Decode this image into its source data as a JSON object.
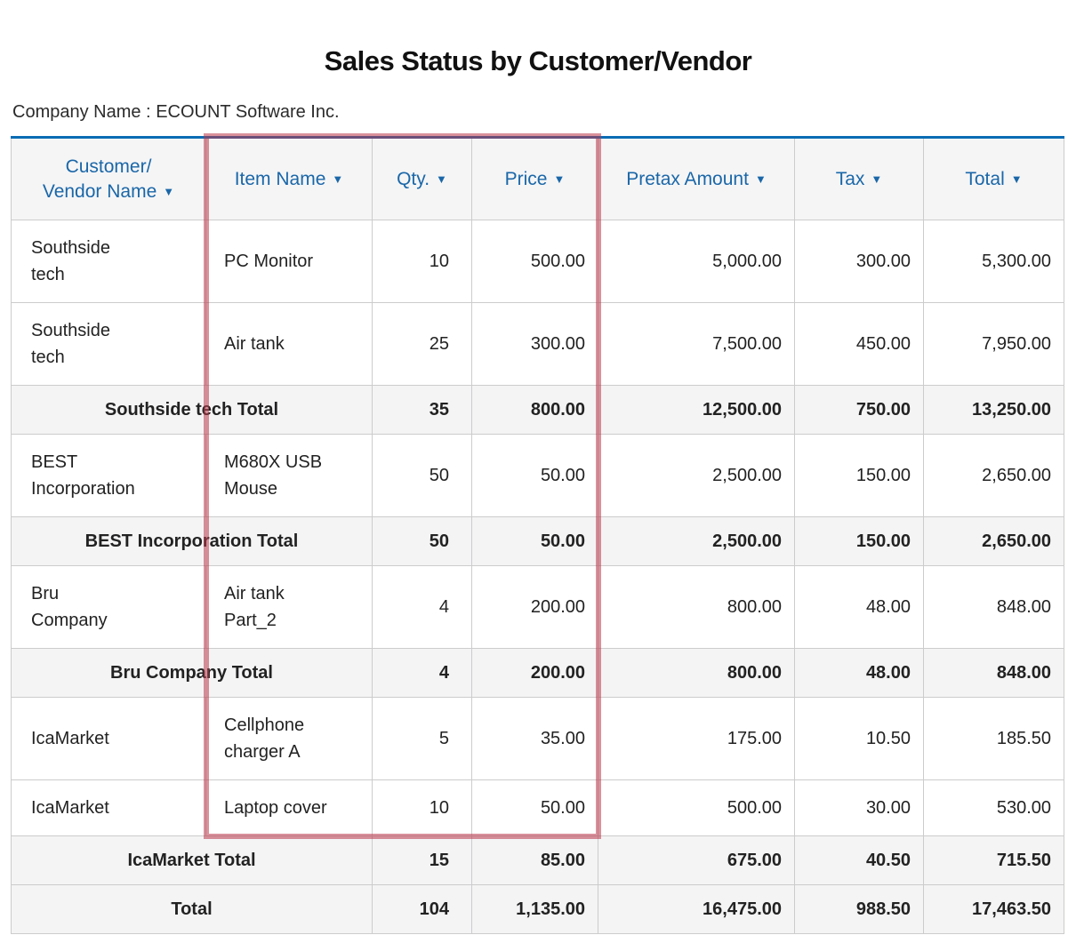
{
  "report": {
    "title": "Sales Status by Customer/Vendor",
    "company_label": "Company Name :",
    "company_name": "ECOUNT Software Inc."
  },
  "colors": {
    "accent_blue": "#0b6cb4",
    "header_text_blue": "#1a67a8",
    "highlight_red": "rgba(185,55,72,0.55)",
    "grid_line": "#cccccc",
    "total_row_bg": "#f4f4f5"
  },
  "icons": {
    "sort_icon": "▼"
  },
  "highlight": {
    "from_column": "item",
    "to_column": "price",
    "covers_rows": "header-through-last-data-row"
  },
  "table": {
    "columns": [
      {
        "id": "customer",
        "lines": [
          "Customer/",
          "Vendor Name"
        ],
        "sortable": true
      },
      {
        "id": "item",
        "lines": [
          "Item Name"
        ],
        "sortable": true
      },
      {
        "id": "qty",
        "lines": [
          "Qty."
        ],
        "sortable": true
      },
      {
        "id": "price",
        "lines": [
          "Price"
        ],
        "sortable": true
      },
      {
        "id": "pretax",
        "lines": [
          "Pretax Amount"
        ],
        "sortable": true
      },
      {
        "id": "tax",
        "lines": [
          "Tax"
        ],
        "sortable": true
      },
      {
        "id": "total",
        "lines": [
          "Total"
        ],
        "sortable": true
      }
    ],
    "rows": [
      {
        "type": "data",
        "customer_lines": [
          "Southside",
          "tech"
        ],
        "item_lines": [
          "PC Monitor"
        ],
        "qty": "10",
        "price": "500.00",
        "pretax": "5,000.00",
        "tax": "300.00",
        "total": "5,300.00"
      },
      {
        "type": "data",
        "customer_lines": [
          "Southside",
          "tech"
        ],
        "item_lines": [
          "Air tank"
        ],
        "qty": "25",
        "price": "300.00",
        "pretax": "7,500.00",
        "tax": "450.00",
        "total": "7,950.00"
      },
      {
        "type": "subtotal",
        "label": "Southside tech Total",
        "qty": "35",
        "price": "800.00",
        "pretax": "12,500.00",
        "tax": "750.00",
        "total": "13,250.00"
      },
      {
        "type": "data",
        "customer_lines": [
          "BEST",
          "Incorporation"
        ],
        "item_lines": [
          "M680X USB",
          "Mouse"
        ],
        "qty": "50",
        "price": "50.00",
        "pretax": "2,500.00",
        "tax": "150.00",
        "total": "2,650.00"
      },
      {
        "type": "subtotal",
        "label": "BEST Incorporation Total",
        "qty": "50",
        "price": "50.00",
        "pretax": "2,500.00",
        "tax": "150.00",
        "total": "2,650.00"
      },
      {
        "type": "data",
        "customer_lines": [
          "Bru",
          "Company"
        ],
        "item_lines": [
          "Air tank",
          "Part_2"
        ],
        "qty": "4",
        "price": "200.00",
        "pretax": "800.00",
        "tax": "48.00",
        "total": "848.00"
      },
      {
        "type": "subtotal",
        "label": "Bru Company Total",
        "qty": "4",
        "price": "200.00",
        "pretax": "800.00",
        "tax": "48.00",
        "total": "848.00"
      },
      {
        "type": "data",
        "customer_lines": [
          "IcaMarket"
        ],
        "item_lines": [
          "Cellphone",
          "charger A"
        ],
        "qty": "5",
        "price": "35.00",
        "pretax": "175.00",
        "tax": "10.50",
        "total": "185.50"
      },
      {
        "type": "data",
        "customer_lines": [
          "IcaMarket"
        ],
        "item_lines": [
          "Laptop cover"
        ],
        "qty": "10",
        "price": "50.00",
        "pretax": "500.00",
        "tax": "30.00",
        "total": "530.00"
      },
      {
        "type": "subtotal",
        "label": "IcaMarket Total",
        "qty": "15",
        "price": "85.00",
        "pretax": "675.00",
        "tax": "40.50",
        "total": "715.50"
      },
      {
        "type": "grand_total",
        "label": "Total",
        "qty": "104",
        "price": "1,135.00",
        "pretax": "16,475.00",
        "tax": "988.50",
        "total": "17,463.50"
      }
    ]
  }
}
